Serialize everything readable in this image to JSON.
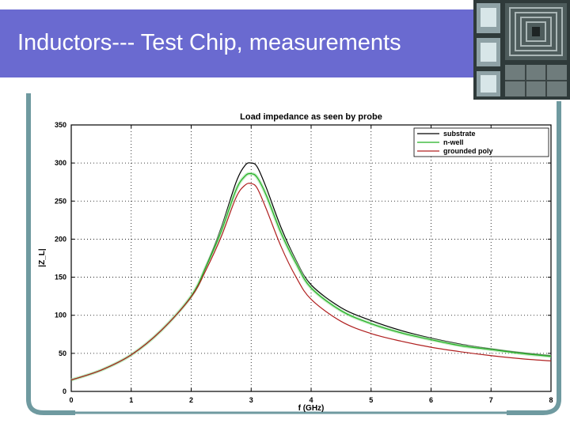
{
  "slide": {
    "title": "Inductors--- Test Chip, measurements"
  },
  "colors": {
    "title_bar": "#6a6ad0",
    "frame": "#6f9aa0",
    "substrate": "#000000",
    "n_well": "#22b022",
    "grounded_poly": "#b02020"
  },
  "chip_photo": {
    "icon": "inductor-chip-micrograph"
  },
  "chart_data": {
    "type": "line",
    "title": "Load impedance as seen by probe",
    "xlabel": "f (GHz)",
    "ylabel": "|Z_L|",
    "xlim": [
      0,
      8
    ],
    "ylim": [
      0,
      350
    ],
    "xticks": [
      "0",
      "1",
      "2",
      "3",
      "4",
      "5",
      "6",
      "7",
      "8"
    ],
    "yticks": [
      "0",
      "50",
      "100",
      "150",
      "200",
      "250",
      "300",
      "350"
    ],
    "grid": true,
    "legend_position": "top-right",
    "series": [
      {
        "name": "substrate",
        "color": "#000000",
        "x": [
          0,
          0.5,
          1,
          1.5,
          2,
          2.25,
          2.5,
          2.75,
          2.9,
          3.0,
          3.1,
          3.25,
          3.5,
          3.75,
          4,
          4.5,
          5,
          5.5,
          6,
          6.5,
          7,
          7.5,
          8
        ],
        "y": [
          15,
          28,
          48,
          80,
          125,
          165,
          215,
          275,
          297,
          300,
          295,
          268,
          215,
          172,
          140,
          110,
          93,
          80,
          70,
          62,
          56,
          51,
          47
        ]
      },
      {
        "name": "n-well",
        "color": "#22b022",
        "x": [
          0,
          0.5,
          1,
          1.5,
          2,
          2.25,
          2.5,
          2.75,
          2.9,
          3.0,
          3.1,
          3.25,
          3.5,
          3.75,
          4,
          4.5,
          5,
          5.5,
          6,
          6.5,
          7,
          7.5,
          8
        ],
        "y": [
          15,
          28,
          48,
          80,
          125,
          164,
          210,
          265,
          283,
          286,
          281,
          258,
          208,
          168,
          136,
          106,
          89,
          77,
          68,
          60,
          55,
          50,
          46
        ]
      },
      {
        "name": "grounded poly",
        "color": "#b02020",
        "x": [
          0,
          0.5,
          1,
          1.5,
          2,
          2.25,
          2.5,
          2.75,
          2.9,
          3.0,
          3.1,
          3.25,
          3.5,
          3.75,
          4,
          4.5,
          5,
          5.5,
          6,
          6.5,
          7,
          7.5,
          8
        ],
        "y": [
          15,
          28,
          48,
          80,
          124,
          160,
          203,
          255,
          271,
          273,
          267,
          240,
          190,
          150,
          121,
          92,
          76,
          66,
          58,
          52,
          47,
          43,
          40
        ]
      }
    ]
  }
}
